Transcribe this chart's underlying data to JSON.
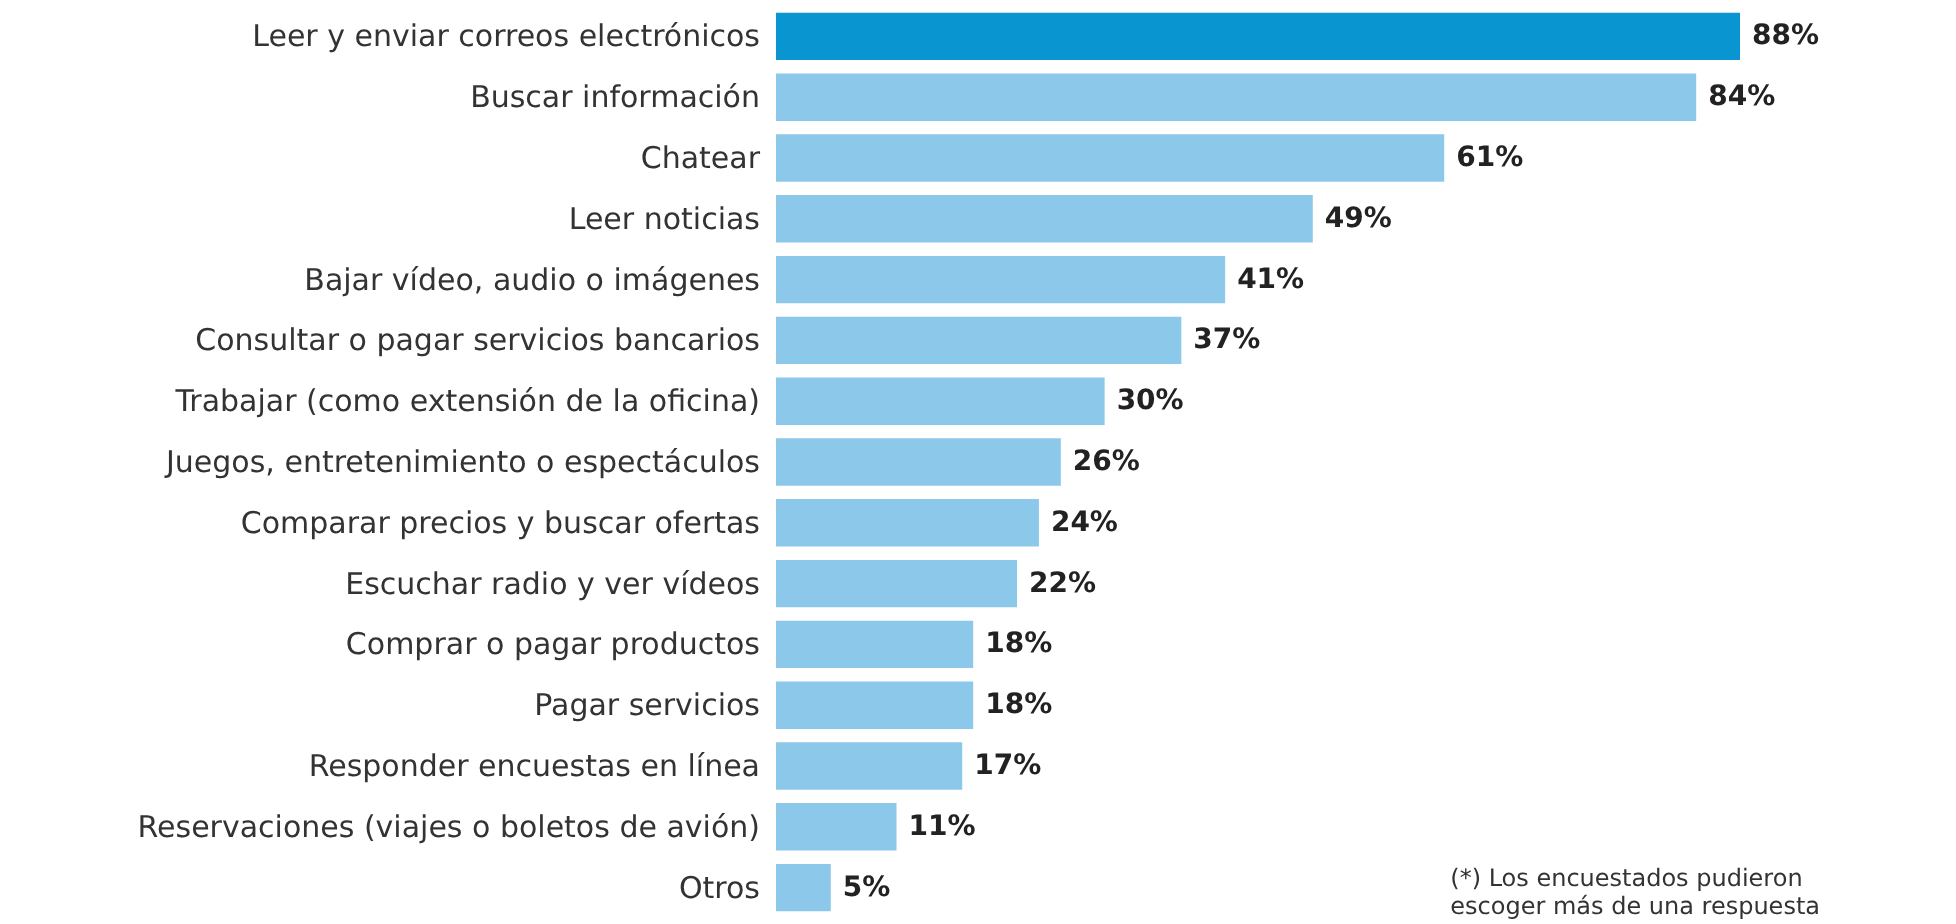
{
  "chart_data": {
    "type": "bar",
    "orientation": "horizontal",
    "categories": [
      "Leer y enviar correos electrónicos",
      "Buscar información",
      "Chatear",
      "Leer noticias",
      "Bajar vídeo, audio o imágenes",
      "Consultar o pagar servicios bancarios",
      "Trabajar (como extensión de la oficina)",
      "Juegos, entretenimiento o espectáculos",
      "Comparar precios y buscar ofertas",
      "Escuchar radio y ver vídeos",
      "Comprar o pagar productos",
      "Pagar servicios",
      "Responder encuestas en línea",
      "Reservaciones (viajes o boletos de avión)",
      "Otros"
    ],
    "values": [
      88,
      84,
      61,
      49,
      41,
      37,
      30,
      26,
      24,
      22,
      18,
      18,
      17,
      11,
      5
    ],
    "value_labels": [
      "88%",
      "84%",
      "61%",
      "49%",
      "41%",
      "37%",
      "30%",
      "26%",
      "24%",
      "22%",
      "18%",
      "18%",
      "17%",
      "11%",
      "5%"
    ],
    "colors": [
      "#0995cf",
      "#8cc8ea",
      "#8cc8ea",
      "#8cc8ea",
      "#8cc8ea",
      "#8cc8ea",
      "#8cc8ea",
      "#8cc8ea",
      "#8cc8ea",
      "#8cc8ea",
      "#8cc8ea",
      "#8cc8ea",
      "#8cc8ea",
      "#8cc8ea",
      "#8cc8ea"
    ],
    "annotations": [
      "(*) Los encuestados pudieron\nescoger más de una respuesta"
    ]
  }
}
